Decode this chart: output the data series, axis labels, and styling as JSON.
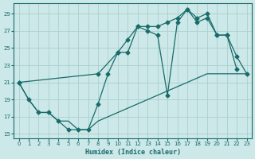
{
  "xlabel": "Humidex (Indice chaleur)",
  "xlim": [
    -0.5,
    23.5
  ],
  "ylim": [
    14.5,
    30.2
  ],
  "bg_color": "#cce8e8",
  "line_color": "#1a6b6b",
  "grid_color": "#aad0d0",
  "xticks": [
    0,
    1,
    2,
    3,
    4,
    5,
    6,
    7,
    8,
    9,
    10,
    11,
    12,
    13,
    14,
    15,
    16,
    17,
    18,
    19,
    20,
    21,
    22,
    23
  ],
  "yticks": [
    15,
    17,
    19,
    21,
    23,
    25,
    27,
    29
  ],
  "line_wiggly_x": [
    0,
    1,
    2,
    3,
    4,
    5,
    6,
    7,
    8,
    9,
    10,
    11,
    12,
    13,
    14,
    15,
    16,
    17,
    18,
    19,
    20,
    21,
    22
  ],
  "line_wiggly_y": [
    21,
    19,
    17.5,
    17.5,
    16.5,
    15.5,
    15.5,
    15.5,
    18.5,
    22,
    24.5,
    24.5,
    27.5,
    27,
    26.5,
    19.5,
    28,
    29.5,
    28,
    28.5,
    26.5,
    26.5,
    22.5
  ],
  "line_smooth_x": [
    0,
    8,
    10,
    11,
    12,
    13,
    14,
    15,
    16,
    17,
    18,
    19,
    20,
    21,
    22,
    23
  ],
  "line_smooth_y": [
    21,
    22,
    24.5,
    26,
    27.5,
    27.5,
    27.5,
    28,
    28.5,
    29.5,
    28.5,
    29,
    26.5,
    26.5,
    24,
    22
  ],
  "line_diag_x": [
    0,
    1,
    2,
    3,
    4,
    5,
    6,
    7,
    8,
    9,
    10,
    11,
    12,
    13,
    14,
    15,
    16,
    17,
    18,
    19,
    20,
    21,
    22,
    23
  ],
  "line_diag_y": [
    21,
    19,
    17.5,
    17.5,
    16.5,
    16.5,
    15.5,
    15.5,
    16.5,
    17,
    17.5,
    18,
    18.5,
    19,
    19.5,
    20,
    20.5,
    21,
    21.5,
    22,
    22,
    22,
    22,
    22
  ]
}
